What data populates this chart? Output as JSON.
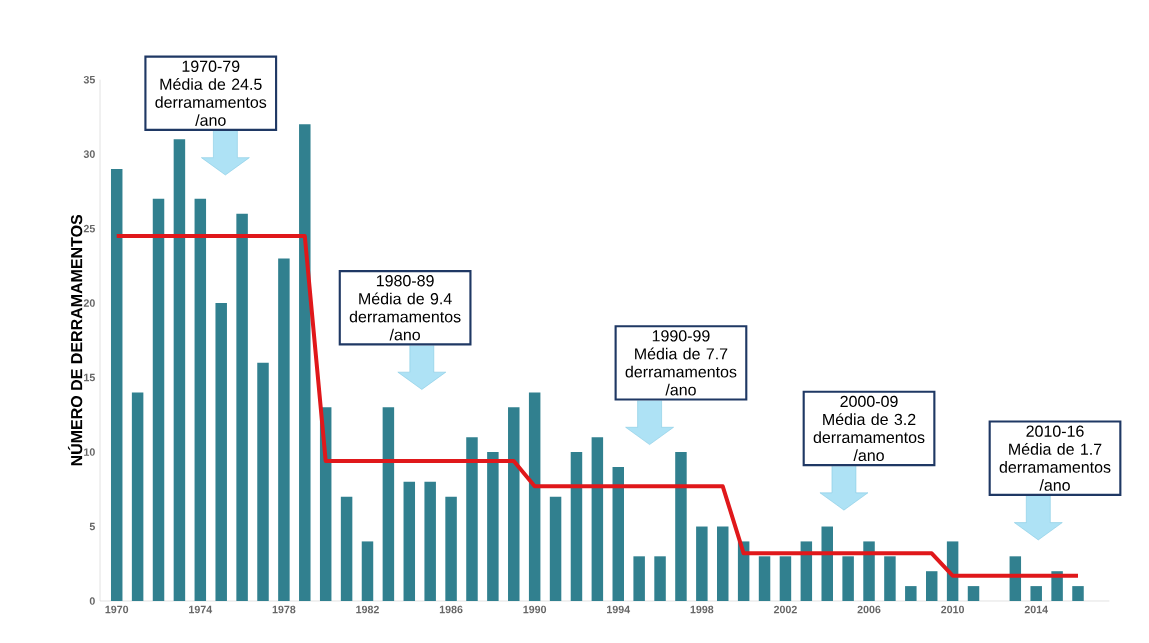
{
  "chart_data": {
    "type": "bar",
    "ylabel": "NÚMERO DE DERRAMAMENTOS",
    "xlim": [
      1969.2,
      2017.5
    ],
    "xticks": [
      1970,
      1974,
      1978,
      1982,
      1986,
      1990,
      1994,
      1998,
      2002,
      2006,
      2010,
      2014
    ],
    "ylim": [
      0,
      35
    ],
    "yticks": [
      0,
      5,
      10,
      15,
      20,
      25,
      30,
      35
    ],
    "series": [
      {
        "color": "#31808f",
        "x": [
          1970,
          1971,
          1972,
          1973,
          1974,
          1975,
          1976,
          1977,
          1978,
          1979,
          1980,
          1981,
          1982,
          1983,
          1984,
          1985,
          1986,
          1987,
          1988,
          1989,
          1990,
          1991,
          1992,
          1993,
          1994,
          1995,
          1996,
          1997,
          1998,
          1999,
          2000,
          2001,
          2002,
          2003,
          2004,
          2005,
          2006,
          2007,
          2008,
          2009,
          2010,
          2011,
          2012,
          2013,
          2014,
          2015,
          2016
        ],
        "values": [
          29,
          14,
          27,
          31,
          27,
          20,
          26,
          16,
          23,
          32,
          13,
          7,
          4,
          13,
          8,
          8,
          7,
          11,
          10,
          13,
          14,
          7,
          10,
          11,
          9,
          3,
          3,
          10,
          5,
          5,
          4,
          3,
          3,
          4,
          5,
          3,
          4,
          3,
          1,
          2,
          4,
          1,
          0,
          3,
          1,
          2,
          1
        ]
      },
      {
        "type": "line",
        "color": "#e0181b",
        "x": [
          1970,
          1979,
          1980,
          1989,
          1990,
          1999,
          2000,
          2009,
          2010,
          2016
        ],
        "values": [
          24.5,
          24.5,
          9.4,
          9.4,
          7.7,
          7.7,
          3.2,
          3.2,
          1.7,
          1.7
        ]
      }
    ],
    "annotations": [
      "1970-79 Média de 24.5 derramamentos /ano",
      "1980-89 Média de 9.4 derramamentos /ano",
      "1990-99 Média de 7.7 derramamentos /ano",
      "2000-09 Média de 3.2 derramamentos /ano",
      "2010-16 Média de 1.7 derramamentos /ano"
    ]
  }
}
